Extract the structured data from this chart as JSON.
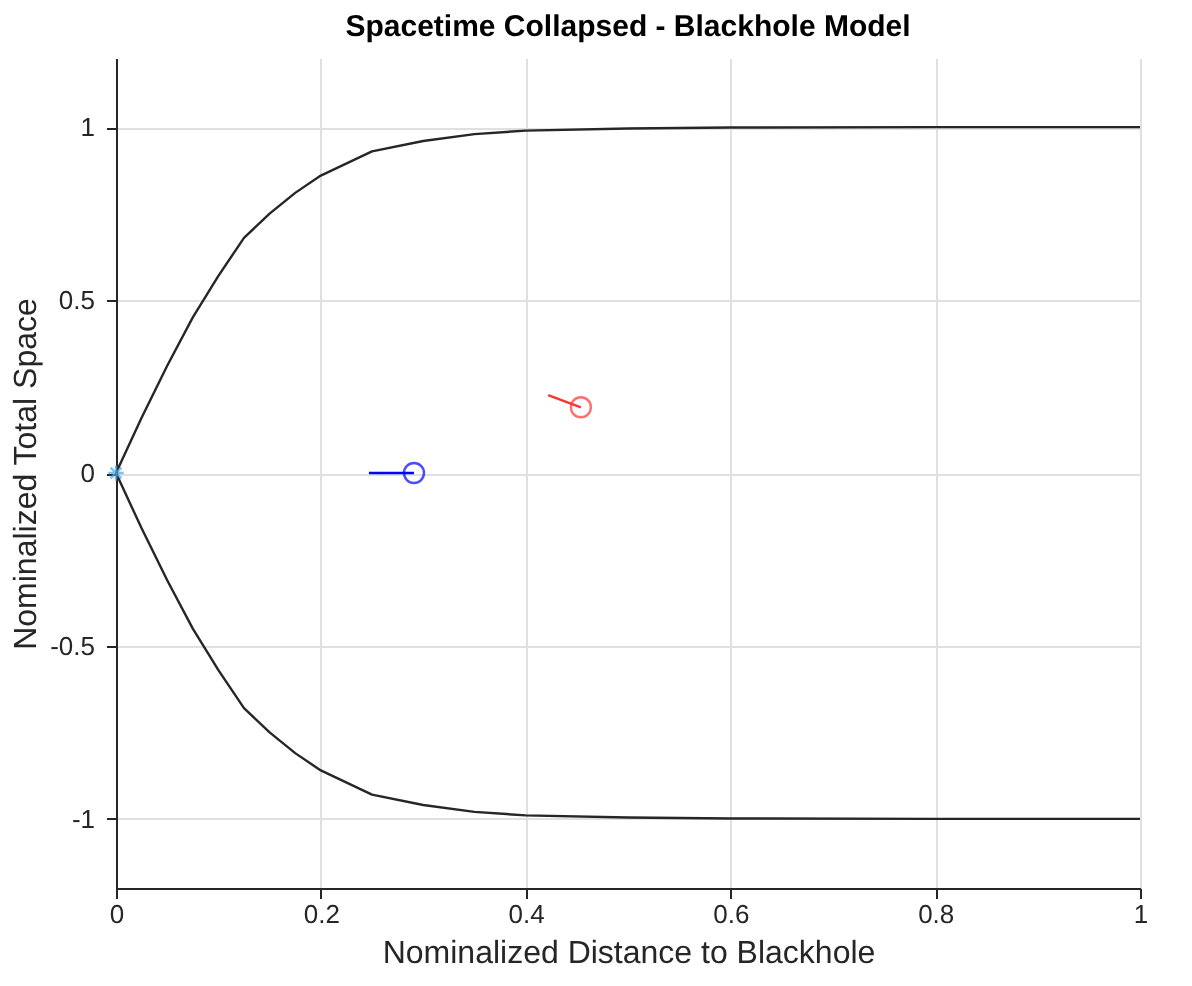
{
  "chart_data": {
    "type": "line",
    "title": "Spacetime Collapsed - Blackhole Model",
    "xlabel": "Nominalized Distance to Blackhole",
    "ylabel": "Nominalized Total Space",
    "xlim": [
      0,
      1
    ],
    "xticks": [
      0,
      0.2,
      0.4,
      0.6,
      0.8,
      1
    ],
    "ylim": [
      -1.2,
      1.2
    ],
    "yticks": [
      -1,
      -0.5,
      0,
      0.5,
      1
    ],
    "grid": true,
    "series": [
      {
        "type": "line",
        "color": "#262626",
        "x": [
          0,
          0.025,
          0.05,
          0.075,
          0.1,
          0.125,
          0.15,
          0.175,
          0.2,
          0.25,
          0.3,
          0.35,
          0.4,
          0.5,
          0.6,
          0.8,
          1
        ],
        "values": [
          0,
          0.16,
          0.31,
          0.45,
          0.57,
          0.68,
          0.75,
          0.81,
          0.86,
          0.93,
          0.96,
          0.98,
          0.99,
          0.996,
          0.999,
          1,
          1
        ]
      },
      {
        "type": "line",
        "color": "#262626",
        "x": [
          0,
          0.025,
          0.05,
          0.075,
          0.1,
          0.125,
          0.15,
          0.175,
          0.2,
          0.25,
          0.3,
          0.35,
          0.4,
          0.5,
          0.6,
          0.8,
          1
        ],
        "values": [
          0,
          -0.16,
          -0.31,
          -0.45,
          -0.57,
          -0.68,
          -0.75,
          -0.81,
          -0.86,
          -0.93,
          -0.96,
          -0.98,
          -0.99,
          -0.996,
          -0.999,
          -1,
          -1
        ]
      },
      {
        "type": "scatter",
        "marker": "cross",
        "color": "#4da6e6",
        "x": [
          0
        ],
        "values": [
          0
        ]
      },
      {
        "type": "line",
        "color": "#0000ff",
        "x": [
          0.247,
          0.291
        ],
        "values": [
          0,
          0
        ]
      },
      {
        "type": "scatter",
        "marker": "circle",
        "color": "#0000ff",
        "x": [
          0.291
        ],
        "values": [
          0
        ]
      },
      {
        "type": "line",
        "color": "#ff3333",
        "x": [
          0.422,
          0.454
        ],
        "values": [
          0.225,
          0.19
        ]
      },
      {
        "type": "scatter",
        "marker": "circle",
        "color": "#ff3333",
        "x": [
          0.454
        ],
        "values": [
          0.19
        ]
      }
    ]
  }
}
